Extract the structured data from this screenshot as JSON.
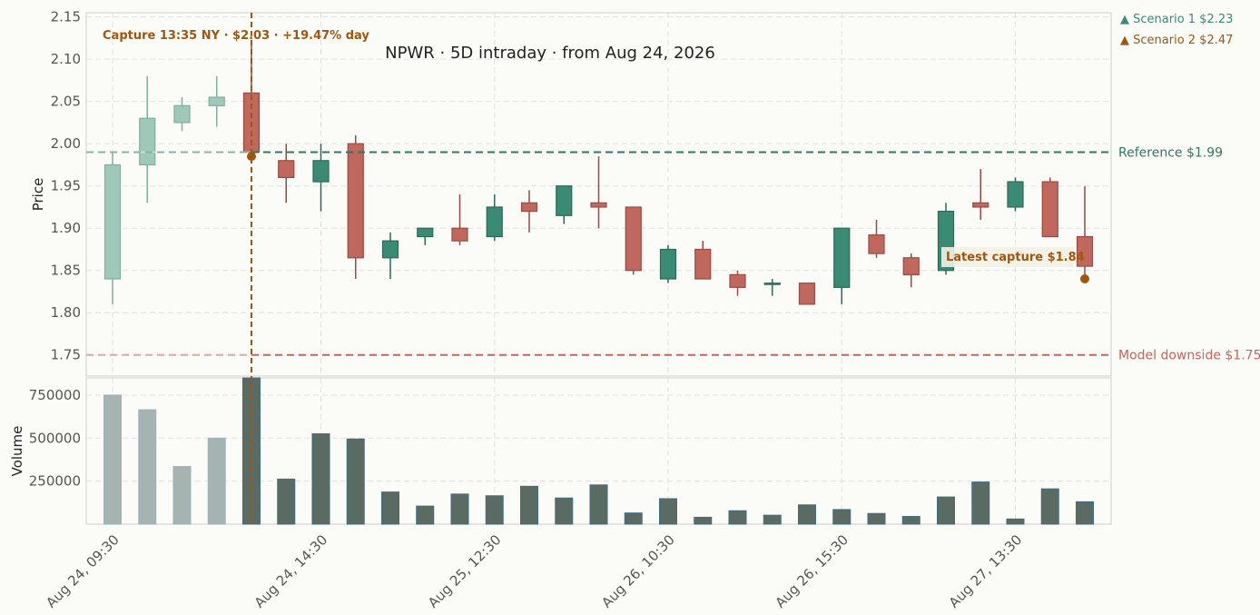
{
  "chart_data": {
    "type": "candlestick",
    "title": "NPWR  ·  5D intraday  ·  from Aug 24, 2026",
    "price_axis": {
      "label": "Price",
      "ylim": [
        1.725,
        2.155
      ],
      "ticks": [
        "2.15",
        "2.10",
        "2.05",
        "2.00",
        "1.95",
        "1.90",
        "1.85",
        "1.80",
        "1.75"
      ]
    },
    "volume_axis": {
      "label": "Volume",
      "ylim": [
        0,
        850000
      ],
      "ticks": [
        "750000",
        "500000",
        "250000"
      ]
    },
    "x_tick_labels": [
      "Aug 24, 09:30",
      "Aug 24, 14:30",
      "Aug 25, 12:30",
      "Aug 26, 10:30",
      "Aug 26, 15:30",
      "Aug 27, 13:30"
    ],
    "x_tick_indices": [
      0,
      6,
      11,
      16,
      21,
      26
    ],
    "grid": true,
    "pre_capture_bars": 4,
    "capture_index": 4,
    "colors": {
      "up": "#3b8a74",
      "down": "#c0675e",
      "pre_up": "#a0c8b8",
      "pre_up_edge": "#7fb0a0",
      "volume": "#5a6b63",
      "volume_pre": "#a6b4b1",
      "reference": "#2e7a64",
      "downside": "#c0675e",
      "capture": "#a0560e"
    },
    "candles": [
      {
        "o": 1.84,
        "h": 1.99,
        "l": 1.81,
        "c": 1.975,
        "v": 750000
      },
      {
        "o": 1.975,
        "h": 2.08,
        "l": 1.93,
        "c": 2.03,
        "v": 665000
      },
      {
        "o": 2.025,
        "h": 2.055,
        "l": 2.015,
        "c": 2.045,
        "v": 335000
      },
      {
        "o": 2.045,
        "h": 2.08,
        "l": 2.02,
        "c": 2.055,
        "v": 500000
      },
      {
        "o": 2.06,
        "h": 2.12,
        "l": 1.985,
        "c": 1.99,
        "v": 850000
      },
      {
        "o": 1.98,
        "h": 2.0,
        "l": 1.93,
        "c": 1.96,
        "v": 262000
      },
      {
        "o": 1.955,
        "h": 2.0,
        "l": 1.92,
        "c": 1.98,
        "v": 525000
      },
      {
        "o": 2.0,
        "h": 2.01,
        "l": 1.84,
        "c": 1.865,
        "v": 495000
      },
      {
        "o": 1.865,
        "h": 1.895,
        "l": 1.84,
        "c": 1.885,
        "v": 187000
      },
      {
        "o": 1.89,
        "h": 1.9,
        "l": 1.88,
        "c": 1.9,
        "v": 105000
      },
      {
        "o": 1.9,
        "h": 1.94,
        "l": 1.88,
        "c": 1.885,
        "v": 175000
      },
      {
        "o": 1.89,
        "h": 1.94,
        "l": 1.885,
        "c": 1.925,
        "v": 165000
      },
      {
        "o": 1.93,
        "h": 1.945,
        "l": 1.895,
        "c": 1.92,
        "v": 220000
      },
      {
        "o": 1.915,
        "h": 1.95,
        "l": 1.905,
        "c": 1.95,
        "v": 152000
      },
      {
        "o": 1.93,
        "h": 1.985,
        "l": 1.9,
        "c": 1.925,
        "v": 228000
      },
      {
        "o": 1.925,
        "h": 1.925,
        "l": 1.845,
        "c": 1.85,
        "v": 65000
      },
      {
        "o": 1.84,
        "h": 1.88,
        "l": 1.835,
        "c": 1.875,
        "v": 148000
      },
      {
        "o": 1.875,
        "h": 1.885,
        "l": 1.84,
        "c": 1.84,
        "v": 40000
      },
      {
        "o": 1.845,
        "h": 1.85,
        "l": 1.82,
        "c": 1.83,
        "v": 78000
      },
      {
        "o": 1.835,
        "h": 1.84,
        "l": 1.82,
        "c": 1.835,
        "v": 52000
      },
      {
        "o": 1.835,
        "h": 1.835,
        "l": 1.81,
        "c": 1.81,
        "v": 112000
      },
      {
        "o": 1.83,
        "h": 1.9,
        "l": 1.81,
        "c": 1.9,
        "v": 85000
      },
      {
        "o": 1.892,
        "h": 1.91,
        "l": 1.865,
        "c": 1.87,
        "v": 62000
      },
      {
        "o": 1.865,
        "h": 1.87,
        "l": 1.83,
        "c": 1.845,
        "v": 45000
      },
      {
        "o": 1.85,
        "h": 1.93,
        "l": 1.845,
        "c": 1.92,
        "v": 158000
      },
      {
        "o": 1.93,
        "h": 1.97,
        "l": 1.91,
        "c": 1.925,
        "v": 245000
      },
      {
        "o": 1.925,
        "h": 1.96,
        "l": 1.92,
        "c": 1.955,
        "v": 30000
      },
      {
        "o": 1.955,
        "h": 1.96,
        "l": 1.89,
        "c": 1.89,
        "v": 205000
      },
      {
        "o": 1.89,
        "h": 1.95,
        "l": 1.845,
        "c": 1.855,
        "v": 130000
      }
    ],
    "reference_line": {
      "value": 1.99,
      "label": "Reference $1.99"
    },
    "downside_line": {
      "value": 1.75,
      "label": "Model downside $1.75"
    },
    "scenarios": [
      {
        "label": "▲ Scenario 1 $2.23",
        "color": "#3b8a74"
      },
      {
        "label": "▲ Scenario 2 $2.47",
        "color": "#a0560e"
      }
    ],
    "capture": {
      "label": "Capture 13:35 NY · $2.03 · +19.47% day",
      "price": 1.985
    },
    "latest": {
      "label": "Latest capture $1.84",
      "price": 1.84
    }
  }
}
